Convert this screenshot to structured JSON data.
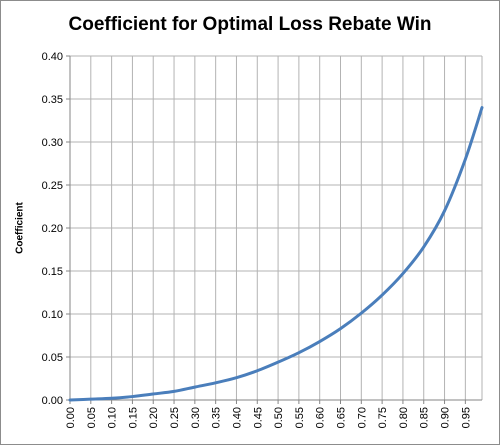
{
  "chart_data": {
    "type": "line",
    "title": "Coefficient for Optimal Loss Rebate Win",
    "xlabel": "",
    "ylabel": "Coefficient",
    "ylim": [
      0,
      0.4
    ],
    "yticks": [
      "0.00",
      "0.05",
      "0.10",
      "0.15",
      "0.20",
      "0.25",
      "0.30",
      "0.35",
      "0.40"
    ],
    "xticks": [
      "0.00",
      "0.05",
      "0.10",
      "0.15",
      "0.20",
      "0.25",
      "0.30",
      "0.35",
      "0.40",
      "0.45",
      "0.50",
      "0.55",
      "0.60",
      "0.65",
      "0.70",
      "0.75",
      "0.80",
      "0.85",
      "0.90",
      "0.95"
    ],
    "grid": true,
    "legend": "none",
    "line_color": "#4a7ebb",
    "series": [
      {
        "x": [
          0.0,
          0.05,
          0.1,
          0.15,
          0.2,
          0.25,
          0.3,
          0.35,
          0.4,
          0.45,
          0.5,
          0.55,
          0.6,
          0.65,
          0.7,
          0.75,
          0.8,
          0.85,
          0.9,
          0.95,
          0.99
        ],
        "values": [
          0.0,
          0.001,
          0.002,
          0.004,
          0.007,
          0.01,
          0.015,
          0.02,
          0.026,
          0.034,
          0.044,
          0.055,
          0.068,
          0.083,
          0.101,
          0.122,
          0.147,
          0.178,
          0.22,
          0.28,
          0.34
        ]
      }
    ]
  }
}
